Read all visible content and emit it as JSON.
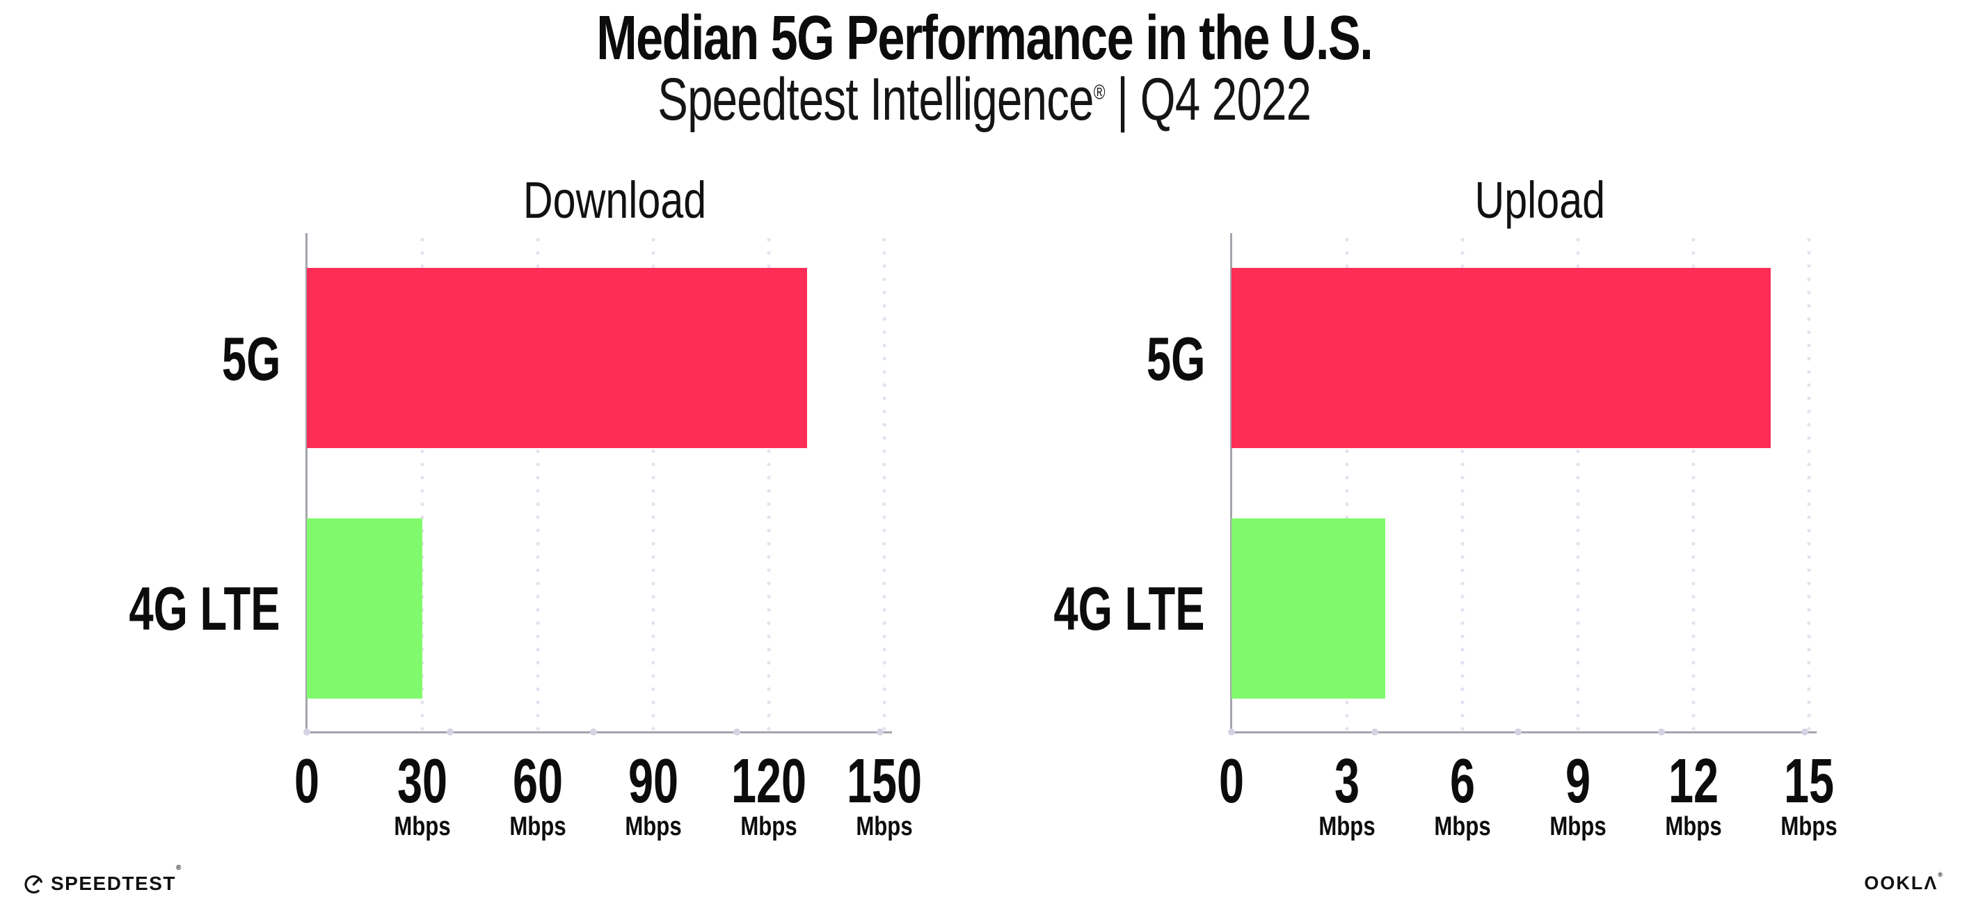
{
  "page": {
    "background": "#ffffff"
  },
  "header": {
    "title": "Median 5G Performance in the U.S.",
    "subtitle_brand": "Speedtest Intelligence",
    "subtitle_mark": "®",
    "subtitle_rest": "| Q4 2022"
  },
  "colors": {
    "bar_5g": "#fc2d56",
    "bar_4g_lte": "#80fa6c",
    "gridline": "#e3e3f0",
    "axis": "#a4a4ac",
    "text": "#0c0c0c"
  },
  "chart_data": [
    {
      "type": "bar",
      "orientation": "horizontal",
      "title": "Download",
      "unit": "Mbps",
      "categories": [
        "5G",
        "4G LTE"
      ],
      "values": [
        130,
        30
      ],
      "xlim": [
        0,
        150
      ],
      "xticks": [
        0,
        30,
        60,
        90,
        120,
        150
      ],
      "ticks": [
        {
          "label": "0",
          "unit": ""
        },
        {
          "label": "30",
          "unit": "Mbps"
        },
        {
          "label": "60",
          "unit": "Mbps"
        },
        {
          "label": "90",
          "unit": "Mbps"
        },
        {
          "label": "120",
          "unit": "Mbps"
        },
        {
          "label": "150",
          "unit": "Mbps"
        }
      ],
      "bar_colors": [
        "#fc2d56",
        "#80fa6c"
      ],
      "grid": "vertical-dotted",
      "legend": "none"
    },
    {
      "type": "bar",
      "orientation": "horizontal",
      "title": "Upload",
      "unit": "Mbps",
      "categories": [
        "5G",
        "4G LTE"
      ],
      "values": [
        14,
        4
      ],
      "xlim": [
        0,
        15
      ],
      "xticks": [
        0,
        3,
        6,
        9,
        12,
        15
      ],
      "ticks": [
        {
          "label": "0",
          "unit": ""
        },
        {
          "label": "3",
          "unit": "Mbps"
        },
        {
          "label": "6",
          "unit": "Mbps"
        },
        {
          "label": "9",
          "unit": "Mbps"
        },
        {
          "label": "12",
          "unit": "Mbps"
        },
        {
          "label": "15",
          "unit": "Mbps"
        }
      ],
      "bar_colors": [
        "#fc2d56",
        "#80fa6c"
      ],
      "grid": "vertical-dotted",
      "legend": "none"
    }
  ],
  "footer": {
    "speedtest_text": "SPEEDTEST",
    "speedtest_mark": "®",
    "ookla_text": "OOKLΛ",
    "ookla_mark": "®"
  }
}
